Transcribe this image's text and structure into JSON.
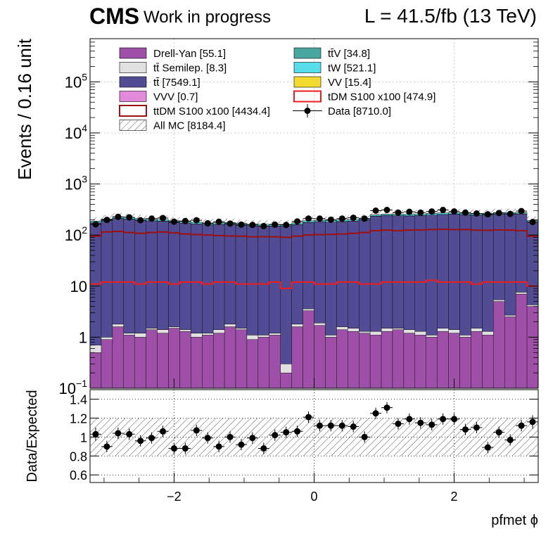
{
  "header": {
    "cms": "CMS",
    "subtitle": "Work in progress",
    "lumi": "L = 41.5/fb (13 TeV)"
  },
  "chart_data": [
    {
      "type": "bar",
      "subtype": "stacked-histogram-log",
      "ylabel": "Events / 0.16 unit",
      "xlabel": "",
      "ylim": [
        0.1,
        700000
      ],
      "xlim": [
        -3.2,
        3.2
      ],
      "log_y": true,
      "bin_width": 0.16,
      "y_ticks": [
        {
          "label": "10^-1",
          "value": 0.1
        },
        {
          "label": "1",
          "value": 1
        },
        {
          "label": "10",
          "value": 10
        },
        {
          "label": "10^2",
          "value": 100
        },
        {
          "label": "10^3",
          "value": 1000
        },
        {
          "label": "10^4",
          "value": 10000
        },
        {
          "label": "10^5",
          "value": 100000
        }
      ],
      "bin_centers": [
        -3.12,
        -2.96,
        -2.8,
        -2.64,
        -2.48,
        -2.32,
        -2.16,
        -2.0,
        -1.84,
        -1.68,
        -1.52,
        -1.36,
        -1.2,
        -1.04,
        -0.88,
        -0.72,
        -0.56,
        -0.4,
        -0.24,
        -0.08,
        0.08,
        0.24,
        0.4,
        0.56,
        0.72,
        0.88,
        1.04,
        1.2,
        1.36,
        1.52,
        1.68,
        1.84,
        2.0,
        2.16,
        2.32,
        2.48,
        2.64,
        2.8,
        2.96,
        3.12
      ],
      "series": [
        {
          "name": "Drell-Yan [55.1]",
          "color": "#9e4fa7",
          "kind": "stack",
          "values": [
            0.5,
            0.9,
            1.6,
            1.1,
            1.0,
            1.4,
            1.2,
            1.5,
            1.3,
            1.0,
            1.1,
            1.2,
            1.6,
            1.4,
            0.9,
            1.0,
            1.1,
            0.2,
            1.6,
            3.3,
            1.7,
            1.0,
            1.4,
            1.3,
            1.2,
            1.1,
            1.3,
            1.4,
            1.2,
            1.1,
            1.0,
            1.3,
            1.2,
            1.0,
            1.3,
            1.1,
            5.0,
            2.5,
            7.0,
            4.0
          ]
        },
        {
          "name": "tt̄ Semilep. [8.3]",
          "color": "#e1e1e1",
          "kind": "stack",
          "values": [
            0.2,
            0.1,
            0.2,
            0.1,
            0.2,
            0.1,
            0.2,
            0.1,
            0.1,
            0.2,
            0.1,
            0.2,
            0.2,
            0.1,
            0.2,
            0.1,
            0.1,
            0.1,
            0.2,
            0.3,
            0.2,
            0.1,
            0.2,
            0.2,
            0.1,
            0.2,
            0.2,
            0.1,
            0.2,
            0.2,
            0.1,
            0.2,
            0.2,
            0.1,
            0.2,
            0.2,
            0.4,
            0.2,
            0.6,
            0.3
          ]
        },
        {
          "name": "tt̄ [7549.1]",
          "color": "#524c94",
          "kind": "stack",
          "values": [
            172,
            192,
            210,
            205,
            196,
            187,
            185,
            176,
            170,
            164,
            160,
            160,
            161,
            155,
            150,
            150,
            148,
            150,
            158,
            172,
            180,
            178,
            182,
            186,
            198,
            232,
            240,
            238,
            236,
            240,
            245,
            252,
            256,
            250,
            246,
            246,
            252,
            256,
            250,
            175
          ]
        },
        {
          "name": "VVV [0.7]",
          "color": "#e48adb",
          "kind": "stack",
          "values": [
            0.02,
            0.02,
            0.02,
            0.02,
            0.02,
            0.02,
            0.02,
            0.02,
            0.02,
            0.02,
            0.02,
            0.02,
            0.02,
            0.02,
            0.02,
            0.02,
            0.02,
            0.02,
            0.02,
            0.02,
            0.02,
            0.02,
            0.02,
            0.02,
            0.02,
            0.02,
            0.02,
            0.02,
            0.02,
            0.02,
            0.02,
            0.02,
            0.02,
            0.02,
            0.02,
            0.02,
            0.02,
            0.02,
            0.02,
            0.02
          ]
        },
        {
          "name": "tt̄V [34.8]",
          "color": "#4aa7a0",
          "kind": "stack",
          "values": [
            0.5,
            0.7,
            0.8,
            0.9,
            0.8,
            0.7,
            0.9,
            0.8,
            0.8,
            0.9,
            0.7,
            0.8,
            0.9,
            0.8,
            0.7,
            0.8,
            0.9,
            0.4,
            0.8,
            1.2,
            0.9,
            0.8,
            0.9,
            0.8,
            0.8,
            0.9,
            0.8,
            0.9,
            0.8,
            0.9,
            0.8,
            0.9,
            0.9,
            0.8,
            0.9,
            0.8,
            1.2,
            1.0,
            1.5,
            1.0
          ]
        },
        {
          "name": "tW [521.1]",
          "color": "#56dfeb",
          "kind": "stack",
          "values": [
            13,
            12,
            12,
            13,
            12,
            12,
            13,
            12,
            12,
            12,
            11,
            12,
            12,
            12,
            11,
            11,
            11,
            11,
            12,
            13,
            12,
            12,
            13,
            13,
            12,
            14,
            14,
            15,
            16,
            16,
            17,
            17,
            17,
            16,
            16,
            16,
            15,
            16,
            15,
            12
          ]
        },
        {
          "name": "VV [15.4]",
          "color": "#f2da2e",
          "kind": "stack",
          "values": [
            0.3,
            0.4,
            0.4,
            0.4,
            0.4,
            0.3,
            0.4,
            0.4,
            0.4,
            0.4,
            0.3,
            0.4,
            0.4,
            0.4,
            0.3,
            0.4,
            0.4,
            0.3,
            0.4,
            0.5,
            0.4,
            0.4,
            0.4,
            0.4,
            0.4,
            0.4,
            0.4,
            0.4,
            0.4,
            0.4,
            0.4,
            0.4,
            0.4,
            0.4,
            0.4,
            0.4,
            0.5,
            0.4,
            0.5,
            0.4
          ]
        },
        {
          "name": "tDM S100 x100 [474.9]",
          "color": "#ee1c1c",
          "kind": "line",
          "values": [
            11,
            12,
            12,
            12,
            11,
            12,
            12,
            11,
            12,
            12,
            11,
            12,
            12,
            11,
            11,
            11,
            12,
            9,
            12,
            12,
            11,
            11,
            12,
            12,
            11,
            11,
            12,
            12,
            12,
            12,
            13,
            12,
            12,
            12,
            11,
            12,
            12,
            12,
            12,
            10
          ]
        },
        {
          "name": "ttDM S100 x100 [4434.4]",
          "color": "#9b1010",
          "kind": "line",
          "values": [
            95,
            115,
            118,
            112,
            108,
            112,
            115,
            110,
            105,
            102,
            100,
            98,
            96,
            95,
            92,
            93,
            92,
            90,
            95,
            100,
            102,
            103,
            105,
            108,
            112,
            122,
            125,
            122,
            125,
            126,
            128,
            130,
            128,
            128,
            125,
            124,
            126,
            125,
            122,
            95
          ]
        },
        {
          "name": "Data [8710.0]",
          "color": "#000000",
          "kind": "points",
          "values": [
            162,
            198,
            228,
            222,
            195,
            210,
            215,
            183,
            188,
            195,
            170,
            182,
            168,
            160,
            158,
            150,
            160,
            158,
            185,
            210,
            210,
            200,
            210,
            218,
            210,
            300,
            310,
            275,
            285,
            275,
            290,
            310,
            290,
            275,
            265,
            255,
            270,
            260,
            295,
            180
          ]
        },
        {
          "name": "All MC [8184.4]",
          "color": "#555555",
          "kind": "band",
          "values": []
        }
      ]
    },
    {
      "type": "scatter",
      "subtype": "ratio",
      "ylabel": "Data/Expected",
      "xlabel": "pfmet ϕ",
      "ylim": [
        0.52,
        1.5
      ],
      "xlim": [
        -3.2,
        3.2
      ],
      "y_ticks": [
        0.6,
        0.8,
        1,
        1.2,
        1.4
      ],
      "x_ticks": [
        -2,
        0,
        2
      ],
      "uncertainty_band": [
        0.8,
        1.2
      ],
      "x": [
        -3.12,
        -2.96,
        -2.8,
        -2.64,
        -2.48,
        -2.32,
        -2.16,
        -2.0,
        -1.84,
        -1.68,
        -1.52,
        -1.36,
        -1.2,
        -1.04,
        -0.88,
        -0.72,
        -0.56,
        -0.4,
        -0.24,
        -0.08,
        0.08,
        0.24,
        0.4,
        0.56,
        0.72,
        0.88,
        1.04,
        1.2,
        1.36,
        1.52,
        1.68,
        1.84,
        2.0,
        2.16,
        2.32,
        2.48,
        2.64,
        2.8,
        2.96,
        3.12
      ],
      "values": [
        1.03,
        0.9,
        1.04,
        1.03,
        0.96,
        0.99,
        1.06,
        0.88,
        0.88,
        1.07,
        0.99,
        0.9,
        1.0,
        0.92,
        0.99,
        0.88,
        1.02,
        1.05,
        1.06,
        1.21,
        1.12,
        1.12,
        1.12,
        1.11,
        1.0,
        1.25,
        1.31,
        1.14,
        1.19,
        1.15,
        1.13,
        1.19,
        1.19,
        1.08,
        1.1,
        0.89,
        1.05,
        0.97,
        1.12,
        1.16
      ],
      "errors": [
        0.07,
        0.06,
        0.06,
        0.06,
        0.06,
        0.06,
        0.06,
        0.06,
        0.06,
        0.06,
        0.06,
        0.06,
        0.06,
        0.06,
        0.06,
        0.06,
        0.06,
        0.06,
        0.06,
        0.06,
        0.06,
        0.06,
        0.06,
        0.06,
        0.06,
        0.06,
        0.06,
        0.06,
        0.06,
        0.06,
        0.06,
        0.06,
        0.06,
        0.06,
        0.06,
        0.06,
        0.06,
        0.06,
        0.06,
        0.07
      ]
    }
  ]
}
